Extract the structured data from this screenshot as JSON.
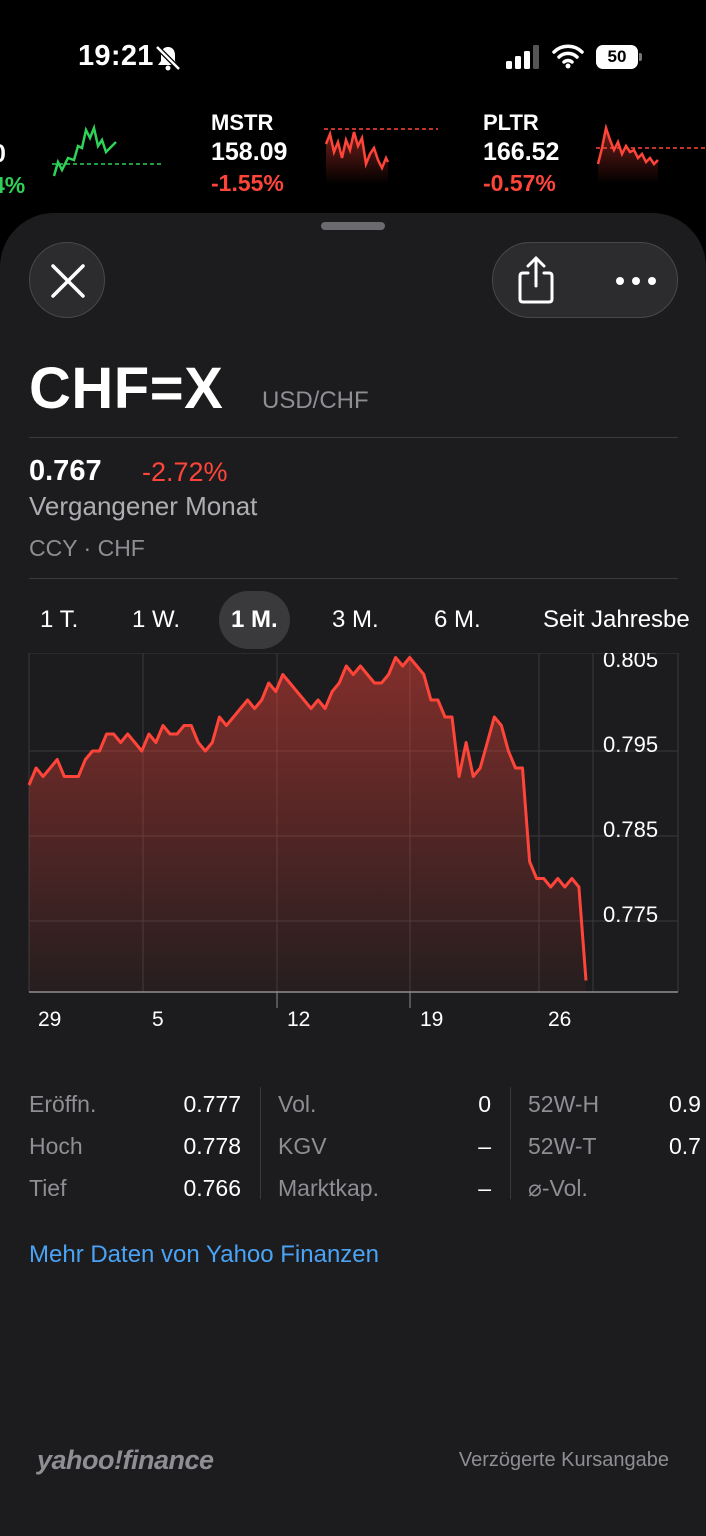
{
  "status_bar": {
    "time": "19:21",
    "battery": "50",
    "icons": [
      "bell-slash-icon",
      "cellular-signal-icon",
      "wifi-icon",
      "battery-icon"
    ]
  },
  "ticker": [
    {
      "symbol": "",
      "price": "",
      "change": "4%",
      "direction": "up"
    },
    {
      "symbol": "MSTR",
      "price": "158.09",
      "change": "-1.55%",
      "direction": "down"
    },
    {
      "symbol": "PLTR",
      "price": "166.52",
      "change": "-0.57%",
      "direction": "down"
    }
  ],
  "header": {
    "close_icon": "close-icon",
    "share_icon": "share-icon",
    "more_icon": "ellipsis-icon"
  },
  "quote": {
    "symbol": "CHF=X",
    "pair": "USD/CHF",
    "price": "0.767",
    "change": "-2.72%",
    "period": "Vergangener Monat",
    "meta": "CCY · CHF"
  },
  "ranges": [
    {
      "label": "1 T.",
      "active": false
    },
    {
      "label": "1 W.",
      "active": false
    },
    {
      "label": "1 M.",
      "active": true
    },
    {
      "label": "3 M.",
      "active": false
    },
    {
      "label": "6 M.",
      "active": false
    },
    {
      "label": "Seit Jahresbe",
      "active": false
    }
  ],
  "chart_data": {
    "type": "area",
    "x_tick_labels": [
      "29",
      "5",
      "12",
      "19",
      "26"
    ],
    "y_tick_labels": [
      "0.805",
      "0.795",
      "0.785",
      "0.775"
    ],
    "ylim": [
      0.767,
      0.806
    ],
    "grid": true,
    "color": "#ff453a",
    "values": [
      0.791,
      0.793,
      0.792,
      0.793,
      0.794,
      0.792,
      0.792,
      0.792,
      0.794,
      0.795,
      0.795,
      0.797,
      0.797,
      0.796,
      0.797,
      0.796,
      0.795,
      0.797,
      0.796,
      0.798,
      0.797,
      0.797,
      0.798,
      0.798,
      0.796,
      0.795,
      0.796,
      0.799,
      0.798,
      0.799,
      0.8,
      0.801,
      0.8,
      0.801,
      0.803,
      0.802,
      0.804,
      0.803,
      0.802,
      0.801,
      0.8,
      0.801,
      0.8,
      0.802,
      0.803,
      0.805,
      0.804,
      0.805,
      0.804,
      0.803,
      0.803,
      0.804,
      0.806,
      0.805,
      0.806,
      0.805,
      0.804,
      0.801,
      0.801,
      0.799,
      0.799,
      0.792,
      0.796,
      0.792,
      0.793,
      0.796,
      0.799,
      0.798,
      0.795,
      0.793,
      0.793,
      0.782,
      0.78,
      0.78,
      0.779,
      0.78,
      0.779,
      0.78,
      0.779,
      0.768
    ]
  },
  "stats": {
    "col1": [
      {
        "label": "Eröffn.",
        "value": "0.777"
      },
      {
        "label": "Hoch",
        "value": "0.778"
      },
      {
        "label": "Tief",
        "value": "0.766"
      }
    ],
    "col2": [
      {
        "label": "Vol.",
        "value": "0"
      },
      {
        "label": "KGV",
        "value": "–"
      },
      {
        "label": "Marktkap.",
        "value": "–"
      }
    ],
    "col3": [
      {
        "label": "52W-H",
        "value": "0.9"
      },
      {
        "label": "52W-T",
        "value": "0.7"
      },
      {
        "label": "⌀-Vol.",
        "value": ""
      }
    ]
  },
  "more_link": "Mehr Daten von Yahoo Finanzen",
  "footer": {
    "logo": "yahoo!finance",
    "delayed": "Verzögerte Kursangabe"
  }
}
